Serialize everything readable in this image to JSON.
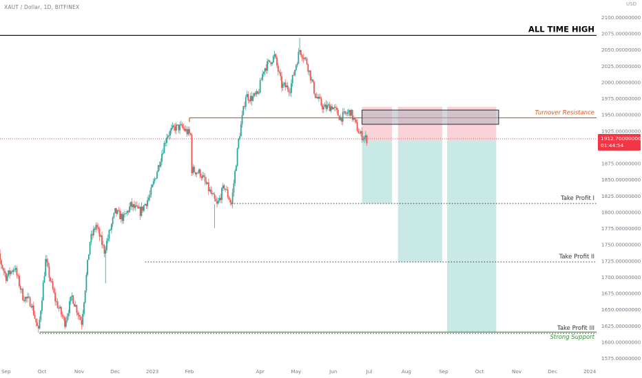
{
  "header": {
    "symbol": "XAUT / Dollar, 1D, BITFINEX",
    "currency": "USD"
  },
  "price_tag": {
    "price": "1912.70000000",
    "countdown": "01:44:54"
  },
  "colors": {
    "up": "#26a69a",
    "down": "#ef5350",
    "resistance": "#e65100",
    "support": "#388e3c",
    "profit_zone": "#b2dfdb",
    "stop_zone": "#f8c4cb",
    "entry_box": "#b0b3bb",
    "last_price": "#f23645"
  },
  "chart_data": {
    "type": "candlestick",
    "title": "",
    "ylim": [
      1565,
      2125
    ],
    "y_ticks": [
      "1575.00000000",
      "1600.00000000",
      "1625.00000000",
      "1650.00000000",
      "1675.00000000",
      "1700.00000000",
      "1725.00000000",
      "1750.00000000",
      "1775.00000000",
      "1800.00000000",
      "1825.00000000",
      "1850.00000000",
      "1875.00000000",
      "1900.00000000",
      "1925.00000000",
      "1950.00000000",
      "1975.00000000",
      "2000.00000000",
      "2025.00000000",
      "2050.00000000",
      "2075.00000000",
      "2100.00000000"
    ],
    "x_ticks": [
      {
        "label": "Sep",
        "date": "2022-09-01"
      },
      {
        "label": "Oct",
        "date": "2022-10-01"
      },
      {
        "label": "Nov",
        "date": "2022-11-01"
      },
      {
        "label": "Dec",
        "date": "2022-12-01"
      },
      {
        "label": "2023",
        "date": "2023-01-01"
      },
      {
        "label": "Feb",
        "date": "2023-02-01"
      },
      {
        "label": "Apr",
        "date": "2023-04-01"
      },
      {
        "label": "May",
        "date": "2023-05-01"
      },
      {
        "label": "Jun",
        "date": "2023-06-01"
      },
      {
        "label": "Jul",
        "date": "2023-07-01"
      },
      {
        "label": "Aug",
        "date": "2023-08-01"
      },
      {
        "label": "Sep",
        "date": "2023-09-01"
      },
      {
        "label": "Oct",
        "date": "2023-10-01"
      },
      {
        "label": "Nov",
        "date": "2023-11-01"
      },
      {
        "label": "Dec",
        "date": "2023-12-01"
      },
      {
        "label": "2024",
        "date": "2024-01-01"
      }
    ],
    "anchors": [
      [
        "2022-08-18",
        1740
      ],
      [
        "2022-08-25",
        1735
      ],
      [
        "2022-09-01",
        1700
      ],
      [
        "2022-09-08",
        1715
      ],
      [
        "2022-09-15",
        1670
      ],
      [
        "2022-09-22",
        1660
      ],
      [
        "2022-09-28",
        1615
      ],
      [
        "2022-10-04",
        1725
      ],
      [
        "2022-10-12",
        1665
      ],
      [
        "2022-10-20",
        1630
      ],
      [
        "2022-10-26",
        1670
      ],
      [
        "2022-11-03",
        1630
      ],
      [
        "2022-11-10",
        1755
      ],
      [
        "2022-11-15",
        1780
      ],
      [
        "2022-11-22",
        1740
      ],
      [
        "2022-12-01",
        1800
      ],
      [
        "2022-12-08",
        1790
      ],
      [
        "2022-12-14",
        1810
      ],
      [
        "2022-12-22",
        1800
      ],
      [
        "2022-12-30",
        1825
      ],
      [
        "2023-01-06",
        1870
      ],
      [
        "2023-01-13",
        1918
      ],
      [
        "2023-01-20",
        1930
      ],
      [
        "2023-01-26",
        1930
      ],
      [
        "2023-02-02",
        1918
      ],
      [
        "2023-02-03",
        1865
      ],
      [
        "2023-02-10",
        1860
      ],
      [
        "2023-02-17",
        1835
      ],
      [
        "2023-02-24",
        1810
      ],
      [
        "2023-03-02",
        1840
      ],
      [
        "2023-03-08",
        1812
      ],
      [
        "2023-03-14",
        1910
      ],
      [
        "2023-03-20",
        1980
      ],
      [
        "2023-03-24",
        1975
      ],
      [
        "2023-03-30",
        1980
      ],
      [
        "2023-04-04",
        2020
      ],
      [
        "2023-04-13",
        2040
      ],
      [
        "2023-04-19",
        1995
      ],
      [
        "2023-04-26",
        1990
      ],
      [
        "2023-05-04",
        2050
      ],
      [
        "2023-05-10",
        2030
      ],
      [
        "2023-05-17",
        1980
      ],
      [
        "2023-05-24",
        1960
      ],
      [
        "2023-05-31",
        1963
      ],
      [
        "2023-06-07",
        1945
      ],
      [
        "2023-06-15",
        1955
      ],
      [
        "2023-06-23",
        1920
      ],
      [
        "2023-06-29",
        1912
      ]
    ],
    "series": [
      {
        "type": "horizontal_line",
        "value": 2072,
        "label": "ALL TIME HIGH"
      },
      {
        "type": "horizontal_line",
        "value": 1945,
        "label": "Turnover Resistance"
      },
      {
        "type": "horizontal_line",
        "value": 1615,
        "label": "Strong Support"
      },
      {
        "type": "dotted_line",
        "value": 1813,
        "label": "Take Profit I"
      },
      {
        "type": "dotted_line",
        "value": 1723,
        "label": "Take Profit II"
      },
      {
        "type": "dotted_line",
        "value": 1613,
        "label": "Take Profit III"
      },
      {
        "type": "last_price_line",
        "value": 1912.7
      }
    ],
    "short_positions": [
      {
        "start": "2023-06-25",
        "end": "2023-07-20",
        "stop": 1962,
        "entry": 1910,
        "target": 1813
      },
      {
        "start": "2023-07-25",
        "end": "2023-08-31",
        "stop": 1962,
        "entry": 1910,
        "target": 1723
      },
      {
        "start": "2023-09-04",
        "end": "2023-10-15",
        "stop": 1962,
        "entry": 1910,
        "target": 1615
      }
    ],
    "entry_box": {
      "start": "2023-06-25",
      "end": "2023-10-17",
      "high": 1957,
      "low": 1935
    }
  }
}
